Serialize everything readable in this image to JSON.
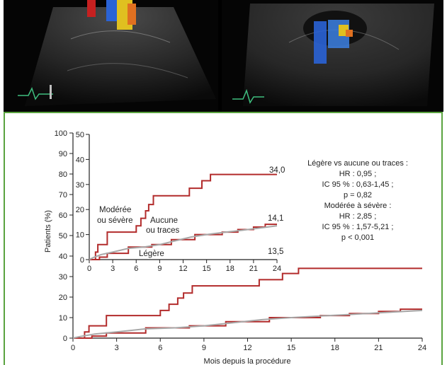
{
  "chart_data": [
    {
      "type": "line",
      "title": "",
      "xlabel": "Mois depuis la procédure",
      "ylabel": "Patients (%)",
      "xlim": [
        0,
        24
      ],
      "ylim": [
        0,
        100
      ],
      "x_ticks": [
        "0",
        "3",
        "6",
        "9",
        "12",
        "15",
        "18",
        "21",
        "24"
      ],
      "y_ticks": [
        "0",
        "10",
        "20",
        "30",
        "40",
        "50",
        "60",
        "70",
        "80",
        "90",
        "100"
      ],
      "grid": false,
      "series": [
        {
          "name": "Modérée ou sévère",
          "color": "#b22b2b",
          "points": [
            [
              0,
              0
            ],
            [
              0.8,
              0
            ],
            [
              0.8,
              3
            ],
            [
              1.1,
              3
            ],
            [
              1.1,
              6
            ],
            [
              2.3,
              6
            ],
            [
              2.3,
              11
            ],
            [
              6.0,
              11
            ],
            [
              6.0,
              13.5
            ],
            [
              6.6,
              13.5
            ],
            [
              6.6,
              16.5
            ],
            [
              7.2,
              16.5
            ],
            [
              7.2,
              19.5
            ],
            [
              7.6,
              19.5
            ],
            [
              7.6,
              22
            ],
            [
              8.2,
              22
            ],
            [
              8.2,
              25.5
            ],
            [
              12.8,
              25.5
            ],
            [
              12.8,
              28.5
            ],
            [
              14.4,
              28.5
            ],
            [
              14.4,
              31.5
            ],
            [
              15.5,
              31.5
            ],
            [
              15.5,
              34
            ],
            [
              24,
              34
            ]
          ],
          "end_label": "34,0"
        },
        {
          "name": "Aucune ou traces",
          "color": "#b22b2b",
          "points": [
            [
              0,
              0
            ],
            [
              1.3,
              0
            ],
            [
              1.3,
              1
            ],
            [
              2.3,
              1
            ],
            [
              2.3,
              2.5
            ],
            [
              5.0,
              2.5
            ],
            [
              5.0,
              5
            ],
            [
              8.0,
              5
            ],
            [
              8.0,
              6
            ],
            [
              10.5,
              6
            ],
            [
              10.5,
              8
            ],
            [
              13.5,
              8
            ],
            [
              13.5,
              10
            ],
            [
              17.0,
              10
            ],
            [
              17.0,
              11
            ],
            [
              19.0,
              11
            ],
            [
              19.0,
              12
            ],
            [
              21.0,
              12
            ],
            [
              21.0,
              13
            ],
            [
              22.5,
              13
            ],
            [
              22.5,
              14.1
            ],
            [
              24,
              14.1
            ]
          ],
          "end_label": "14,1"
        },
        {
          "name": "Légère",
          "color": "#a8a8a8",
          "points": [
            [
              0,
              0
            ],
            [
              0.5,
              0.8
            ],
            [
              1.5,
              2
            ],
            [
              3,
              3
            ],
            [
              5,
              4.5
            ],
            [
              7,
              5
            ],
            [
              9,
              6
            ],
            [
              11,
              7.5
            ],
            [
              13,
              9
            ],
            [
              15,
              10
            ],
            [
              17,
              10.8
            ],
            [
              19,
              11.5
            ],
            [
              21,
              12.3
            ],
            [
              24,
              13.5
            ]
          ],
          "end_label": "13,5"
        }
      ],
      "inset": {
        "ylim": [
          0,
          50
        ],
        "y_ticks": [
          "0",
          "10",
          "20",
          "30",
          "40",
          "50"
        ],
        "x_ticks": [
          "0",
          "3",
          "6",
          "9",
          "12",
          "15",
          "18",
          "21",
          "24"
        ],
        "labels": {
          "moderate": [
            "Modérée",
            "ou sévère"
          ],
          "none": [
            "Aucune",
            "ou traces"
          ],
          "mild": "Légère"
        },
        "end_labels": [
          "34,0",
          "14,1",
          "13,5"
        ]
      },
      "annotation": {
        "lines": [
          "Légère vs aucune ou traces :",
          "HR : 0,95 ;",
          "IC 95 % : 0,63-1,45 ;",
          "p = 0,82",
          "Modérée à sévère :",
          "HR : 2,85 ;",
          "IC 95 % : 1,57-5,21 ;",
          "p < 0,001"
        ]
      }
    }
  ]
}
